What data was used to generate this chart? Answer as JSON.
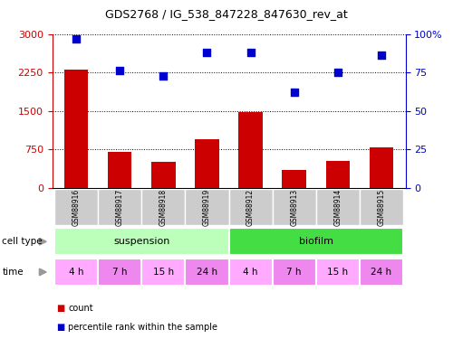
{
  "title": "GDS2768 / IG_538_847228_847630_rev_at",
  "samples": [
    "GSM88916",
    "GSM88917",
    "GSM88918",
    "GSM88919",
    "GSM88912",
    "GSM88913",
    "GSM88914",
    "GSM88915"
  ],
  "counts": [
    2300,
    700,
    520,
    950,
    1480,
    350,
    530,
    800
  ],
  "percentile_ranks": [
    97,
    76,
    73,
    88,
    88,
    62,
    75,
    86
  ],
  "left_yaxis": {
    "min": 0,
    "max": 3000,
    "ticks": [
      0,
      750,
      1500,
      2250,
      3000
    ],
    "color": "#cc0000"
  },
  "right_yaxis": {
    "min": 0,
    "max": 100,
    "ticks": [
      0,
      25,
      50,
      75,
      100
    ],
    "color": "#0000cc"
  },
  "bar_color": "#cc0000",
  "scatter_color": "#0000cc",
  "cell_types": [
    {
      "label": "suspension",
      "start": 0,
      "end": 4,
      "color": "#bbffbb"
    },
    {
      "label": "biofilm",
      "start": 4,
      "end": 8,
      "color": "#44dd44"
    }
  ],
  "time_labels": [
    "4 h",
    "7 h",
    "15 h",
    "24 h",
    "4 h",
    "7 h",
    "15 h",
    "24 h"
  ],
  "time_colors": [
    "#ffaaff",
    "#ee88ee",
    "#ffaaff",
    "#ee88ee",
    "#ffaaff",
    "#ee88ee",
    "#ffaaff",
    "#ee88ee"
  ],
  "sample_bg_color": "#cccccc",
  "dotted_line_color": "#000000",
  "legend_items": [
    {
      "label": "count",
      "color": "#cc0000"
    },
    {
      "label": "percentile rank within the sample",
      "color": "#0000cc"
    }
  ],
  "arrow_color": "#999999",
  "bg_color": "#ffffff"
}
